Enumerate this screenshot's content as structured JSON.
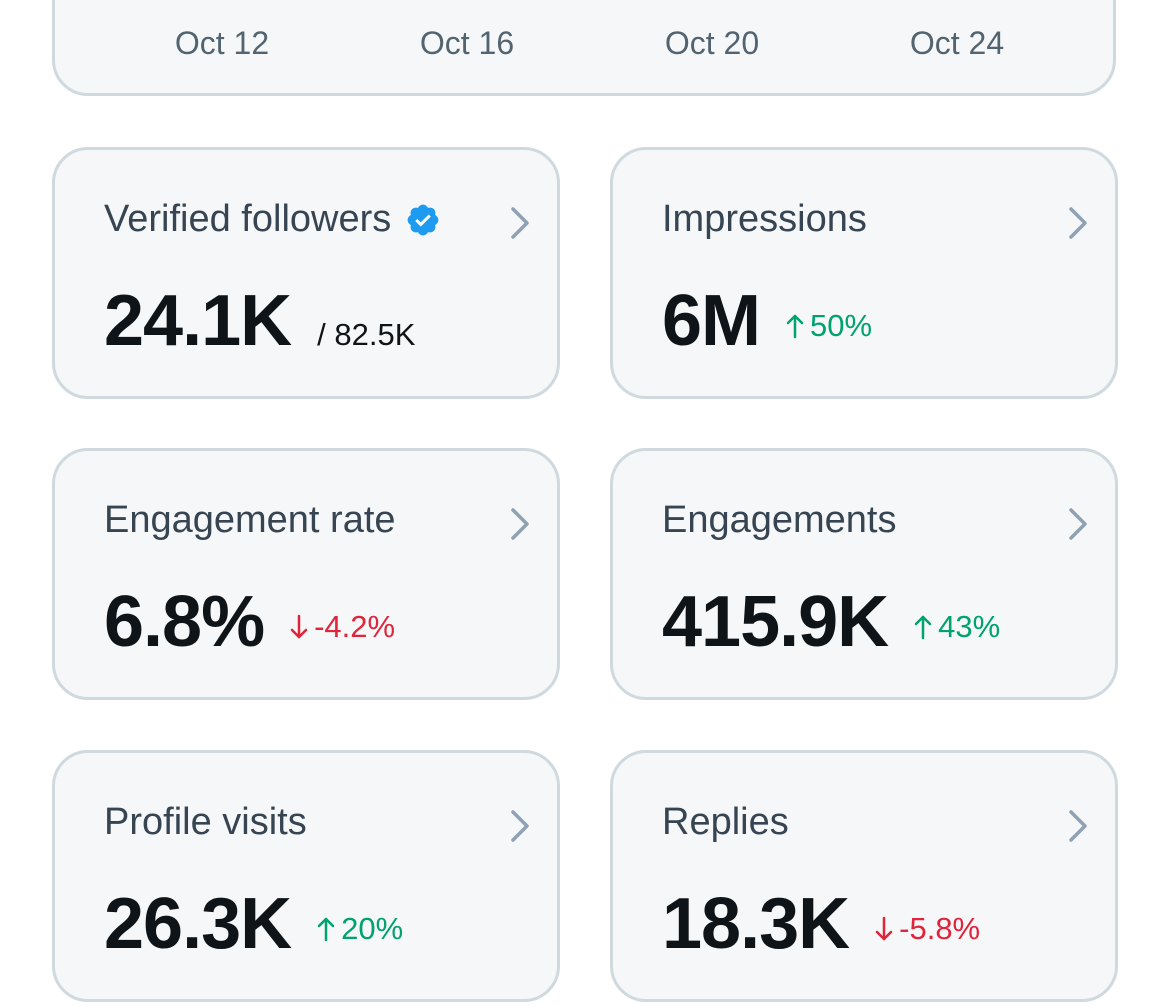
{
  "chart": {
    "x_ticks": [
      "Oct 12",
      "Oct 16",
      "Oct 20",
      "Oct 24"
    ]
  },
  "colors": {
    "card_bg": "#f5f7f8",
    "card_border": "#cfd9de",
    "positive": "#00a36c",
    "negative": "#e0243b",
    "verified": "#1d9bf0",
    "chevron": "#8fa1b3"
  },
  "cards": {
    "verified_followers": {
      "label": "Verified followers",
      "value": "24.1K",
      "sub": "/ 82.5K",
      "icon": "verified-badge-icon"
    },
    "impressions": {
      "label": "Impressions",
      "value": "6M",
      "change": "50%",
      "direction": "up"
    },
    "engagement_rate": {
      "label": "Engagement rate",
      "value": "6.8%",
      "change": "-4.2%",
      "direction": "down"
    },
    "engagements": {
      "label": "Engagements",
      "value": "415.9K",
      "change": "43%",
      "direction": "up"
    },
    "profile_visits": {
      "label": "Profile visits",
      "value": "26.3K",
      "change": "20%",
      "direction": "up"
    },
    "replies": {
      "label": "Replies",
      "value": "18.3K",
      "change": "-5.8%",
      "direction": "down"
    }
  }
}
